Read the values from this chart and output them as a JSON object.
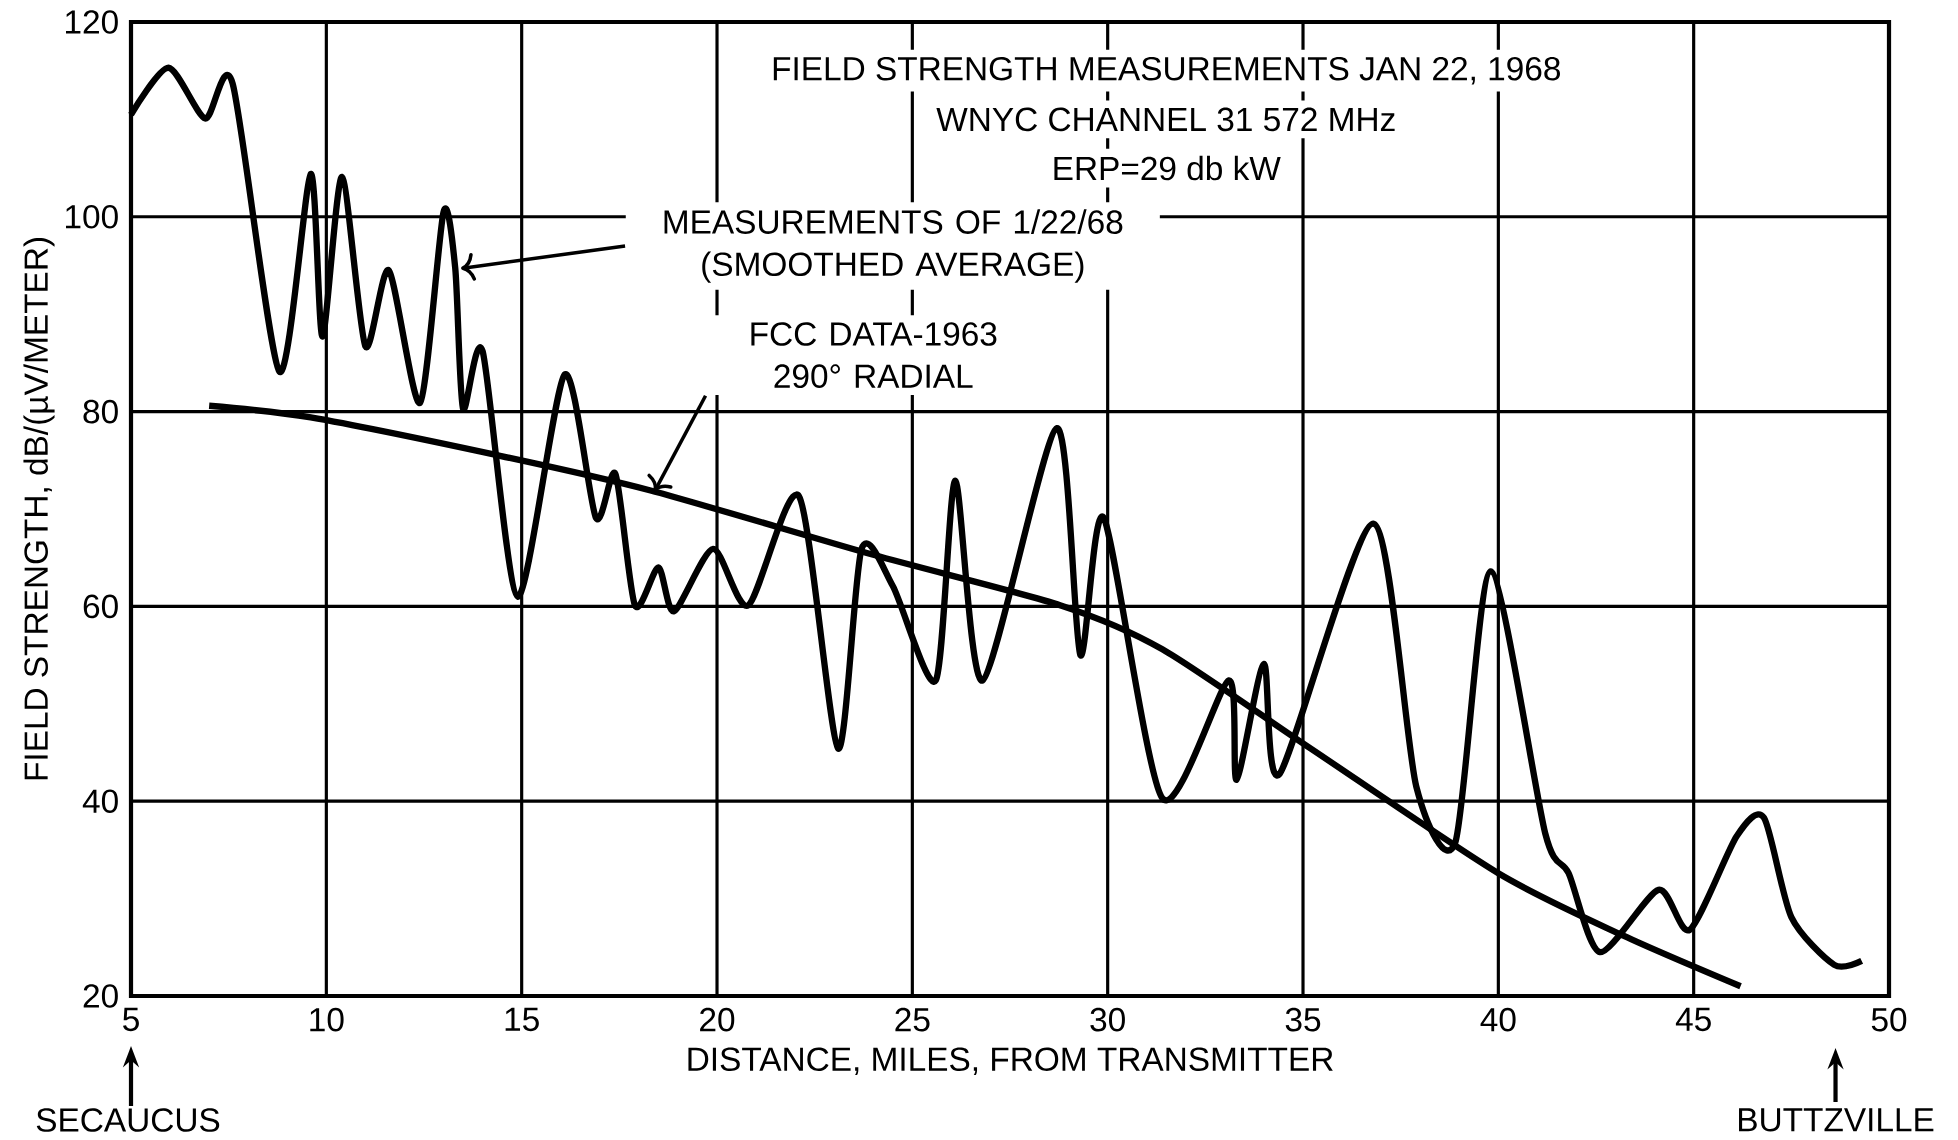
{
  "chart_data": {
    "type": "line",
    "title": "FIELD STRENGTH MEASUREMENTS JAN 22, 1968",
    "subtitle": "WNYC CHANNEL 31 572 MHz",
    "xlabel": "DISTANCE, MILES, FROM TRANSMITTER",
    "ylabel": "FIELD STRENGTH, dB/(µV/METER)",
    "xlim": [
      5,
      50
    ],
    "xticks": [
      5,
      10,
      15,
      20,
      25,
      30,
      35,
      40,
      45,
      50
    ],
    "ylim": [
      20,
      120
    ],
    "yticks": [
      20,
      40,
      60,
      80,
      100,
      120
    ],
    "grid": true,
    "marker": "none",
    "line_style": "solid",
    "series": [
      {
        "color": "#000000",
        "x": [
          5,
          5.96,
          6.9,
          7.6,
          8.8,
          9.6,
          9.9,
          10.4,
          11.0,
          11.6,
          12.4,
          13.0,
          13.3,
          13.5,
          14.0,
          14.9,
          16.1,
          16.9,
          17.4,
          17.9,
          18.5,
          18.9,
          19.9,
          20.8,
          22.1,
          23.1,
          23.7,
          24.5,
          25.6,
          26.1,
          26.8,
          28.7,
          29.3,
          29.9,
          31.4,
          33.1,
          33.3,
          34.0,
          34.4,
          36.8,
          37.9,
          38.9,
          39.8,
          41.2,
          41.8,
          42.6,
          44.1,
          44.9,
          46.1,
          46.8,
          47.5,
          48.6,
          49.3
        ],
        "values": [
          110.5,
          115.3,
          110.1,
          113.7,
          84.1,
          104.4,
          87.7,
          104.1,
          86.7,
          94.5,
          80.9,
          100.5,
          94.7,
          80.3,
          86.2,
          61.0,
          83.8,
          69.1,
          73.6,
          60.1,
          64.0,
          59.5,
          65.9,
          60.1,
          71.3,
          45.4,
          65.9,
          62.1,
          52.4,
          72.9,
          52.4,
          78.3,
          55.0,
          69.1,
          40.3,
          52.4,
          42.2,
          54.1,
          42.8,
          68.5,
          41.5,
          35.8,
          63.6,
          36.7,
          32.6,
          24.5,
          30.9,
          26.8,
          36.4,
          38.3,
          28.1,
          23.2,
          23.6
        ]
      },
      {
        "color": "#000000",
        "x": [
          7.0,
          9.6,
          14.4,
          18.3,
          24.0,
          28.8,
          31.4,
          35.2,
          40.0,
          43.2,
          46.2
        ],
        "values": [
          80.6,
          79.4,
          75.5,
          71.9,
          65.3,
          60.1,
          55.6,
          45.4,
          32.6,
          26.2,
          21.0
        ]
      }
    ],
    "annotations": [
      "ERP=29 db kW",
      "MEASUREMENTS OF 1/22/68\n(SMOOTHED AVERAGE)",
      "FCC DATA-1963\n290° RADIAL",
      "SECAUCUS",
      "BUTTZVILLE"
    ]
  }
}
